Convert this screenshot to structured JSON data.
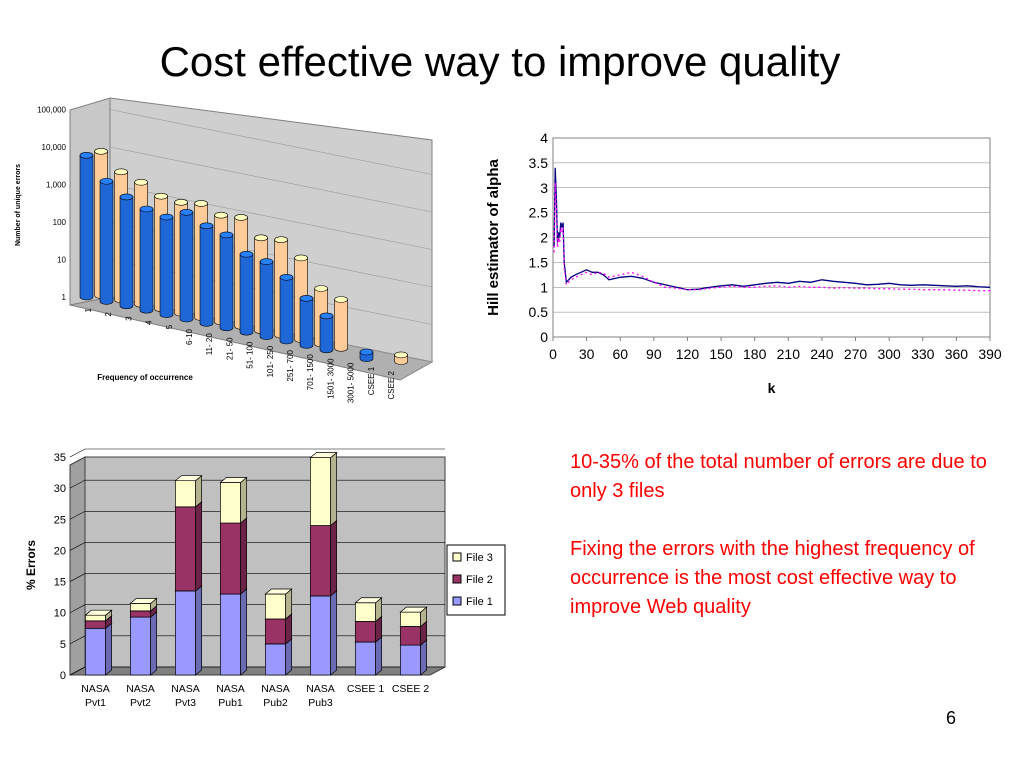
{
  "slide": {
    "title": "Cost effective way to improve quality",
    "page_number": "6",
    "notes": [
      "10-35% of the total number of errors are due to only 3 files",
      "Fixing the errors with the highest frequency of occurrence is the most cost effective way to improve Web quality"
    ]
  },
  "colors": {
    "note_text": "#ff0000",
    "bar_blue": "#1f66d6",
    "bar_peach": "#ffcc99",
    "file1": "#9999ff",
    "file2": "#993366",
    "file3": "#ffffcc",
    "hill_line": "#000080",
    "hill_dots": "#ff00ff"
  },
  "chart_data": [
    {
      "type": "bar",
      "scale": "log",
      "xlabel": "Frequency of occurrence",
      "ylabel": "Number of unique errors",
      "ytick_labels": [
        "1",
        "10",
        "100",
        "1,000",
        "10,000",
        "100,000"
      ],
      "categories": [
        "1",
        "2",
        "3",
        "4",
        "5",
        "6-10",
        "11- 20",
        "21- 50",
        "51- 100",
        "101- 250",
        "251- 700",
        "701- 1500",
        "1501- 3000",
        "3001- 5000",
        "CSEE 1",
        "CSEE 2"
      ],
      "series": [
        {
          "name": "",
          "color": "#1f66d6",
          "values": [
            6000,
            1600,
            800,
            500,
            400,
            700,
            400,
            300,
            120,
            100,
            50,
            18,
            8,
            null,
            1.5,
            null
          ]
        },
        {
          "name": "",
          "color": "#ffcc99",
          "values": [
            7000,
            2600,
            1800,
            1000,
            900,
            1100,
            700,
            800,
            300,
            350,
            150,
            30,
            20,
            null,
            null,
            1.5
          ]
        }
      ]
    },
    {
      "type": "line",
      "xlabel": "k",
      "ylabel": "Hill estimator of alpha",
      "xlim": [
        0,
        390
      ],
      "ylim": [
        0,
        4
      ],
      "xticks": [
        0,
        30,
        60,
        90,
        120,
        150,
        180,
        210,
        240,
        270,
        300,
        330,
        360,
        390
      ],
      "yticks": [
        0,
        0.5,
        1,
        1.5,
        2,
        2.5,
        3,
        3.5,
        4
      ],
      "ytick_labels": [
        "0",
        "0.5",
        "1",
        "1.5",
        "2",
        "2.5",
        "3",
        "3.5",
        "4"
      ],
      "series": [
        {
          "name": "",
          "style": "solid",
          "color": "#000080",
          "x": [
            1,
            2,
            3,
            4,
            5,
            6,
            7,
            8,
            9,
            10,
            12,
            14,
            16,
            20,
            25,
            30,
            35,
            40,
            45,
            50,
            60,
            70,
            80,
            90,
            100,
            110,
            120,
            130,
            140,
            150,
            160,
            170,
            180,
            190,
            200,
            210,
            220,
            230,
            240,
            250,
            260,
            270,
            280,
            290,
            300,
            310,
            320,
            330,
            340,
            350,
            360,
            370,
            380,
            390
          ],
          "y": [
            1.8,
            3.4,
            2.8,
            1.9,
            2.1,
            2.0,
            2.3,
            2.2,
            2.3,
            1.5,
            1.1,
            1.15,
            1.2,
            1.25,
            1.3,
            1.35,
            1.3,
            1.3,
            1.25,
            1.15,
            1.2,
            1.22,
            1.18,
            1.1,
            1.05,
            1.0,
            0.95,
            0.96,
            1.0,
            1.03,
            1.05,
            1.02,
            1.05,
            1.08,
            1.1,
            1.08,
            1.12,
            1.1,
            1.15,
            1.12,
            1.1,
            1.08,
            1.05,
            1.06,
            1.08,
            1.05,
            1.04,
            1.05,
            1.04,
            1.03,
            1.02,
            1.03,
            1.01,
            1.0
          ]
        },
        {
          "name": "",
          "style": "dotted",
          "color": "#ff00ff",
          "x": [
            1,
            2,
            3,
            4,
            5,
            6,
            7,
            8,
            9,
            10,
            12,
            14,
            16,
            20,
            25,
            30,
            35,
            40,
            45,
            50,
            60,
            70,
            80,
            90,
            100,
            110,
            120,
            130,
            140,
            150,
            160,
            170,
            180,
            190,
            200,
            210,
            220,
            230,
            240,
            250,
            260,
            270,
            280,
            290,
            300,
            310,
            320,
            330,
            340,
            350,
            360,
            370,
            380,
            390
          ],
          "y": [
            1.7,
            3.1,
            2.6,
            1.8,
            2.0,
            1.9,
            2.2,
            2.1,
            2.2,
            1.4,
            1.05,
            1.1,
            1.15,
            1.2,
            1.25,
            1.3,
            1.25,
            1.3,
            1.28,
            1.2,
            1.25,
            1.3,
            1.22,
            1.1,
            1.0,
            0.98,
            0.95,
            0.95,
            0.98,
            1.0,
            1.02,
            1.0,
            1.0,
            1.02,
            1.03,
            1.0,
            1.02,
            1.0,
            1.0,
            0.98,
            0.99,
            0.98,
            0.98,
            0.97,
            0.97,
            0.96,
            0.96,
            0.95,
            0.95,
            0.95,
            0.94,
            0.94,
            0.93,
            0.93
          ]
        }
      ]
    },
    {
      "type": "bar",
      "stacked": true,
      "ylabel": "% Errors",
      "ylim": [
        0,
        35
      ],
      "yticks": [
        0,
        5,
        10,
        15,
        20,
        25,
        30,
        35
      ],
      "categories": [
        [
          "NASA",
          "Pvt1"
        ],
        [
          "NASA",
          "Pvt2"
        ],
        [
          "NASA",
          "Pvt3"
        ],
        [
          "NASA",
          "Pub1"
        ],
        [
          "NASA",
          "Pub2"
        ],
        [
          "NASA",
          "Pub3"
        ],
        [
          "CSEE 1"
        ],
        [
          "CSEE 2"
        ]
      ],
      "legend": "right",
      "series": [
        {
          "name": "File 1",
          "color": "#9999ff",
          "values": [
            7.5,
            9.3,
            13.5,
            13.0,
            5.0,
            12.7,
            5.3,
            4.8
          ]
        },
        {
          "name": "File 2",
          "color": "#993366",
          "values": [
            1.2,
            1.0,
            13.5,
            11.4,
            4.0,
            11.3,
            3.3,
            3.0
          ]
        },
        {
          "name": "File 3",
          "color": "#ffffcc",
          "values": [
            0.9,
            1.2,
            4.2,
            6.5,
            4.0,
            10.9,
            3.0,
            2.3
          ]
        }
      ]
    }
  ]
}
